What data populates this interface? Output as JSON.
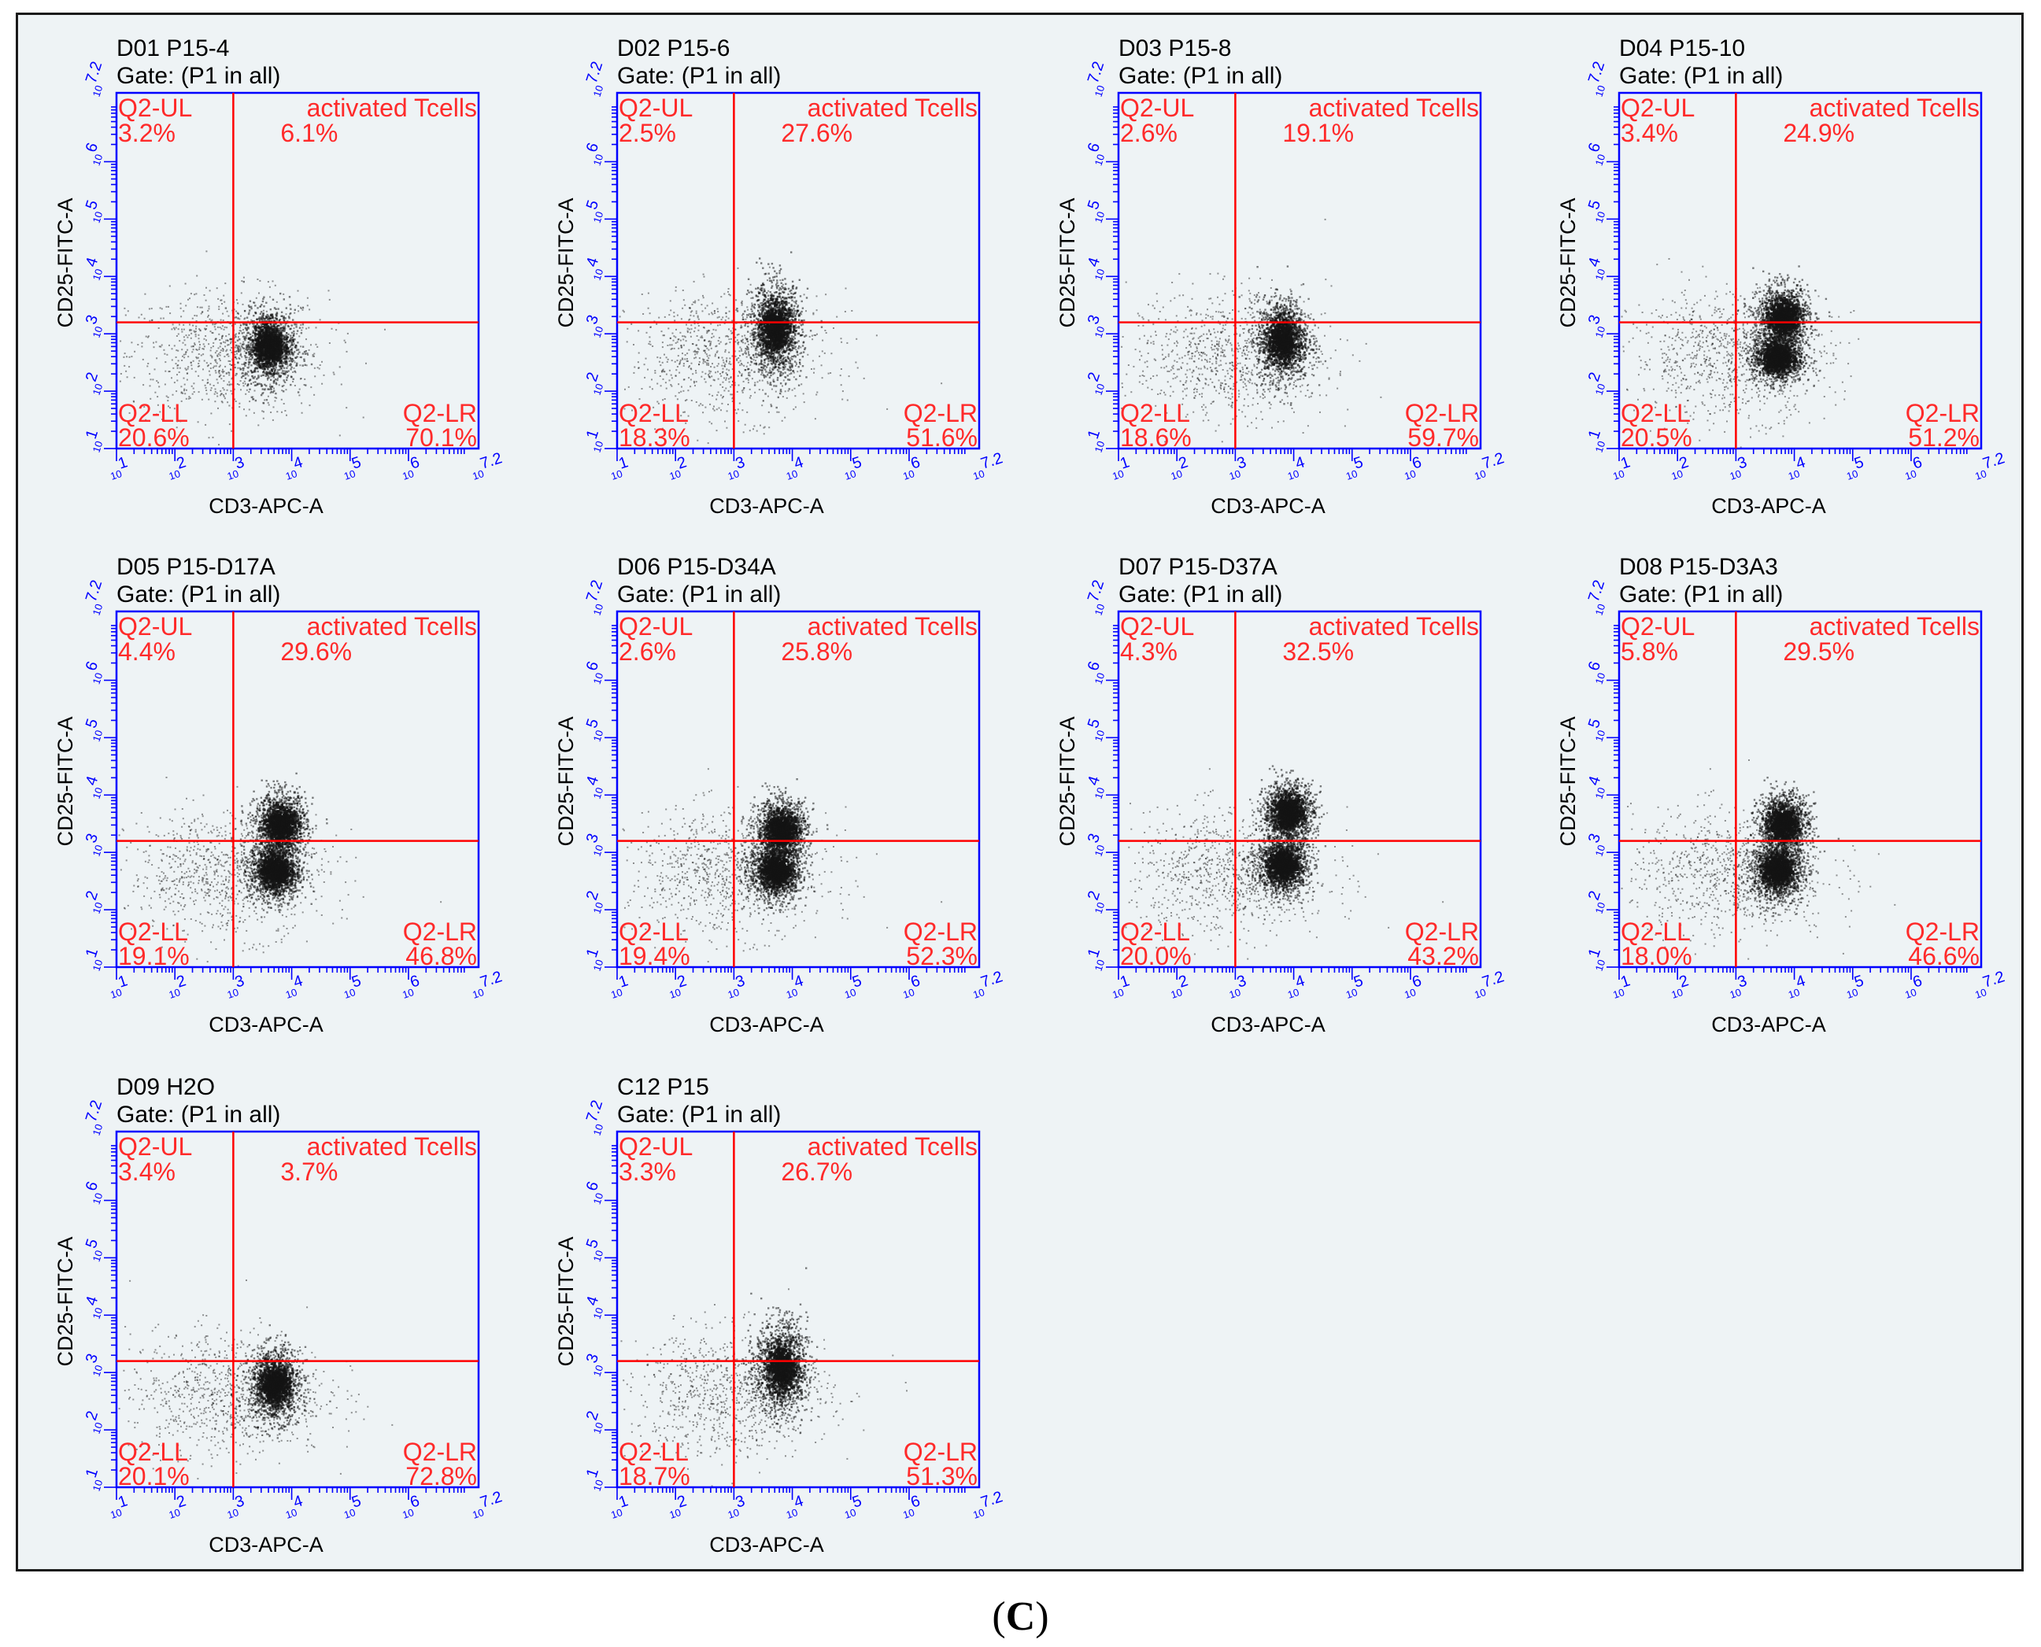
{
  "caption": {
    "open": "(",
    "letter": "C",
    "close": ")"
  },
  "colors": {
    "axis": "#0000ff",
    "gate": "#ff0000",
    "quad_text": "#ff2a2a",
    "title": "#000000",
    "dots": "#141414"
  },
  "chart_data": [
    {
      "type": "scatter",
      "title": "D01 P15-4",
      "subtitle": "Gate: (P1 in all)",
      "xlabel": "CD3-APC-A",
      "ylabel": "CD25-FITC-A",
      "log_scale": true,
      "xlim": [
        1,
        7.2
      ],
      "ylim": [
        1,
        7.2
      ],
      "x_ticks": [
        "1",
        "2",
        "3",
        "4",
        "5",
        "6",
        "7.2"
      ],
      "y_ticks": [
        "1",
        "2",
        "3",
        "4",
        "5",
        "6",
        "7.2"
      ],
      "gate": {
        "x": 3,
        "y": 3.2
      },
      "quadrants": {
        "ul": {
          "name": "Q2-UL",
          "value": "3.2%"
        },
        "ur": {
          "name": "activated Tcells",
          "value": "6.1%"
        },
        "ll": {
          "name": "Q2-LL",
          "value": "20.6%"
        },
        "lr": {
          "name": "Q2-LR",
          "value": "70.1%"
        }
      },
      "clusters": [
        {
          "x": 3.6,
          "y": 2.8,
          "w": 0.7
        }
      ]
    },
    {
      "type": "scatter",
      "title": "D02 P15-6",
      "subtitle": "Gate: (P1 in all)",
      "xlabel": "CD3-APC-A",
      "ylabel": "CD25-FITC-A",
      "log_scale": true,
      "xlim": [
        1,
        7.2
      ],
      "ylim": [
        1,
        7.2
      ],
      "x_ticks": [
        "1",
        "2",
        "3",
        "4",
        "5",
        "6",
        "7.2"
      ],
      "y_ticks": [
        "1",
        "2",
        "3",
        "4",
        "5",
        "6",
        "7.2"
      ],
      "gate": {
        "x": 3,
        "y": 3.2
      },
      "quadrants": {
        "ul": {
          "name": "Q2-UL",
          "value": "2.5%"
        },
        "ur": {
          "name": "activated Tcells",
          "value": "27.6%"
        },
        "ll": {
          "name": "Q2-LL",
          "value": "18.3%"
        },
        "lr": {
          "name": "Q2-LR",
          "value": "51.6%"
        }
      },
      "clusters": [
        {
          "x": 3.7,
          "y": 3.1,
          "w": 0.9
        }
      ]
    },
    {
      "type": "scatter",
      "title": "D03 P15-8",
      "subtitle": "Gate: (P1 in all)",
      "xlabel": "CD3-APC-A",
      "ylabel": "CD25-FITC-A",
      "log_scale": true,
      "xlim": [
        1,
        7.2
      ],
      "ylim": [
        1,
        7.2
      ],
      "x_ticks": [
        "1",
        "2",
        "3",
        "4",
        "5",
        "6",
        "7.2"
      ],
      "y_ticks": [
        "1",
        "2",
        "3",
        "4",
        "5",
        "6",
        "7.2"
      ],
      "gate": {
        "x": 3,
        "y": 3.2
      },
      "quadrants": {
        "ul": {
          "name": "Q2-UL",
          "value": "2.6%"
        },
        "ur": {
          "name": "activated Tcells",
          "value": "19.1%"
        },
        "ll": {
          "name": "Q2-LL",
          "value": "18.6%"
        },
        "lr": {
          "name": "Q2-LR",
          "value": "59.7%"
        }
      },
      "clusters": [
        {
          "x": 3.8,
          "y": 2.9,
          "w": 0.8
        }
      ]
    },
    {
      "type": "scatter",
      "title": "D04 P15-10",
      "subtitle": "Gate: (P1 in all)",
      "xlabel": "CD3-APC-A",
      "ylabel": "CD25-FITC-A",
      "log_scale": true,
      "xlim": [
        1,
        7.2
      ],
      "ylim": [
        1,
        7.2
      ],
      "x_ticks": [
        "1",
        "2",
        "3",
        "4",
        "5",
        "6",
        "7.2"
      ],
      "y_ticks": [
        "1",
        "2",
        "3",
        "4",
        "5",
        "6",
        "7.2"
      ],
      "gate": {
        "x": 3,
        "y": 3.2
      },
      "quadrants": {
        "ul": {
          "name": "Q2-UL",
          "value": "3.4%"
        },
        "ur": {
          "name": "activated Tcells",
          "value": "24.9%"
        },
        "ll": {
          "name": "Q2-LL",
          "value": "20.5%"
        },
        "lr": {
          "name": "Q2-LR",
          "value": "51.2%"
        }
      },
      "clusters": [
        {
          "x": 3.8,
          "y": 3.3,
          "w": 0.6
        },
        {
          "x": 3.7,
          "y": 2.6,
          "w": 0.5
        }
      ]
    },
    {
      "type": "scatter",
      "title": "D05 P15-D17A",
      "subtitle": "Gate: (P1 in all)",
      "xlabel": "CD3-APC-A",
      "ylabel": "CD25-FITC-A",
      "log_scale": true,
      "xlim": [
        1,
        7.2
      ],
      "ylim": [
        1,
        7.2
      ],
      "x_ticks": [
        "1",
        "2",
        "3",
        "4",
        "5",
        "6",
        "7.2"
      ],
      "y_ticks": [
        "1",
        "2",
        "3",
        "4",
        "5",
        "6",
        "7.2"
      ],
      "gate": {
        "x": 3,
        "y": 3.2
      },
      "quadrants": {
        "ul": {
          "name": "Q2-UL",
          "value": "4.4%"
        },
        "ur": {
          "name": "activated Tcells",
          "value": "29.6%"
        },
        "ll": {
          "name": "Q2-LL",
          "value": "19.1%"
        },
        "lr": {
          "name": "Q2-LR",
          "value": "46.8%"
        }
      },
      "clusters": [
        {
          "x": 3.8,
          "y": 3.5,
          "w": 0.6
        },
        {
          "x": 3.7,
          "y": 2.7,
          "w": 0.6
        }
      ]
    },
    {
      "type": "scatter",
      "title": "D06 P15-D34A",
      "subtitle": "Gate: (P1 in all)",
      "xlabel": "CD3-APC-A",
      "ylabel": "CD25-FITC-A",
      "log_scale": true,
      "xlim": [
        1,
        7.2
      ],
      "ylim": [
        1,
        7.2
      ],
      "x_ticks": [
        "1",
        "2",
        "3",
        "4",
        "5",
        "6",
        "7.2"
      ],
      "y_ticks": [
        "1",
        "2",
        "3",
        "4",
        "5",
        "6",
        "7.2"
      ],
      "gate": {
        "x": 3,
        "y": 3.2
      },
      "quadrants": {
        "ul": {
          "name": "Q2-UL",
          "value": "2.6%"
        },
        "ur": {
          "name": "activated Tcells",
          "value": "25.8%"
        },
        "ll": {
          "name": "Q2-LL",
          "value": "19.4%"
        },
        "lr": {
          "name": "Q2-LR",
          "value": "52.3%"
        }
      },
      "clusters": [
        {
          "x": 3.8,
          "y": 3.4,
          "w": 0.6
        },
        {
          "x": 3.7,
          "y": 2.7,
          "w": 0.6
        }
      ]
    },
    {
      "type": "scatter",
      "title": "D07 P15-D37A",
      "subtitle": "Gate: (P1 in all)",
      "xlabel": "CD3-APC-A",
      "ylabel": "CD25-FITC-A",
      "log_scale": true,
      "xlim": [
        1,
        7.2
      ],
      "ylim": [
        1,
        7.2
      ],
      "x_ticks": [
        "1",
        "2",
        "3",
        "4",
        "5",
        "6",
        "7.2"
      ],
      "y_ticks": [
        "1",
        "2",
        "3",
        "4",
        "5",
        "6",
        "7.2"
      ],
      "gate": {
        "x": 3,
        "y": 3.2
      },
      "quadrants": {
        "ul": {
          "name": "Q2-UL",
          "value": "4.3%"
        },
        "ur": {
          "name": "activated Tcells",
          "value": "32.5%"
        },
        "ll": {
          "name": "Q2-LL",
          "value": "20.0%"
        },
        "lr": {
          "name": "Q2-LR",
          "value": "43.2%"
        }
      },
      "clusters": [
        {
          "x": 3.9,
          "y": 3.7,
          "w": 0.6
        },
        {
          "x": 3.8,
          "y": 2.8,
          "w": 0.6
        }
      ]
    },
    {
      "type": "scatter",
      "title": "D08 P15-D3A3",
      "subtitle": "Gate: (P1 in all)",
      "xlabel": "CD3-APC-A",
      "ylabel": "CD25-FITC-A",
      "log_scale": true,
      "xlim": [
        1,
        7.2
      ],
      "ylim": [
        1,
        7.2
      ],
      "x_ticks": [
        "1",
        "2",
        "3",
        "4",
        "5",
        "6",
        "7.2"
      ],
      "y_ticks": [
        "1",
        "2",
        "3",
        "4",
        "5",
        "6",
        "7.2"
      ],
      "gate": {
        "x": 3,
        "y": 3.2
      },
      "quadrants": {
        "ul": {
          "name": "Q2-UL",
          "value": "5.8%"
        },
        "ur": {
          "name": "activated Tcells",
          "value": "29.5%"
        },
        "ll": {
          "name": "Q2-LL",
          "value": "18.0%"
        },
        "lr": {
          "name": "Q2-LR",
          "value": "46.6%"
        }
      },
      "clusters": [
        {
          "x": 3.8,
          "y": 3.5,
          "w": 0.6
        },
        {
          "x": 3.7,
          "y": 2.7,
          "w": 0.6
        }
      ]
    },
    {
      "type": "scatter",
      "title": "D09 H2O",
      "subtitle": "Gate: (P1 in all)",
      "xlabel": "CD3-APC-A",
      "ylabel": "CD25-FITC-A",
      "log_scale": true,
      "xlim": [
        1,
        7.2
      ],
      "ylim": [
        1,
        7.2
      ],
      "x_ticks": [
        "1",
        "2",
        "3",
        "4",
        "5",
        "6",
        "7.2"
      ],
      "y_ticks": [
        "1",
        "2",
        "3",
        "4",
        "5",
        "6",
        "7.2"
      ],
      "gate": {
        "x": 3,
        "y": 3.2
      },
      "quadrants": {
        "ul": {
          "name": "Q2-UL",
          "value": "3.4%"
        },
        "ur": {
          "name": "activated Tcells",
          "value": "3.7%"
        },
        "ll": {
          "name": "Q2-LL",
          "value": "20.1%"
        },
        "lr": {
          "name": "Q2-LR",
          "value": "72.8%"
        }
      },
      "clusters": [
        {
          "x": 3.7,
          "y": 2.8,
          "w": 0.7
        }
      ]
    },
    {
      "type": "scatter",
      "title": "C12 P15",
      "subtitle": "Gate: (P1 in all)",
      "xlabel": "CD3-APC-A",
      "ylabel": "CD25-FITC-A",
      "log_scale": true,
      "xlim": [
        1,
        7.2
      ],
      "ylim": [
        1,
        7.2
      ],
      "x_ticks": [
        "1",
        "2",
        "3",
        "4",
        "5",
        "6",
        "7.2"
      ],
      "y_ticks": [
        "1",
        "2",
        "3",
        "4",
        "5",
        "6",
        "7.2"
      ],
      "gate": {
        "x": 3,
        "y": 3.2
      },
      "quadrants": {
        "ul": {
          "name": "Q2-UL",
          "value": "3.3%"
        },
        "ur": {
          "name": "activated Tcells",
          "value": "26.7%"
        },
        "ll": {
          "name": "Q2-LL",
          "value": "18.7%"
        },
        "lr": {
          "name": "Q2-LR",
          "value": "51.3%"
        }
      },
      "clusters": [
        {
          "x": 3.8,
          "y": 3.1,
          "w": 0.9
        }
      ]
    }
  ]
}
